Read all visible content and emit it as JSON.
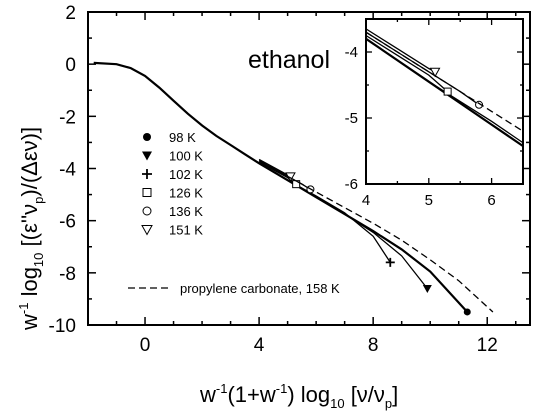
{
  "chart_data": {
    "type": "line",
    "title": "ethanol",
    "xlabel_parts": [
      "w",
      "-1",
      "(1+w",
      "-1",
      ") log",
      "10",
      " [ν/ν",
      "p",
      "]"
    ],
    "ylabel_parts": [
      "w",
      "-1",
      " log",
      "10",
      " [(ε''ν",
      "p",
      ")/(Δεν)]"
    ],
    "xlim": [
      -2,
      13.5
    ],
    "ylim": [
      -10,
      2
    ],
    "xticks": [
      0,
      4,
      8,
      12
    ],
    "yticks": [
      2,
      0,
      -2,
      -4,
      -6,
      -8,
      -10
    ],
    "legend_placement": "left-center",
    "series": [
      {
        "name": "98 K",
        "marker": "filled-circle",
        "x": [
          -1.8,
          -1.0,
          -0.5,
          0.0,
          0.5,
          1.0,
          1.5,
          2.0,
          2.5,
          3.0,
          3.5,
          4.0,
          5.0,
          6.0,
          7.0,
          8.0,
          9.0,
          10.0,
          11.3
        ],
        "y": [
          0.05,
          0.0,
          -0.15,
          -0.45,
          -0.9,
          -1.4,
          -1.9,
          -2.35,
          -2.75,
          -3.1,
          -3.45,
          -3.8,
          -4.45,
          -5.1,
          -5.75,
          -6.4,
          -7.1,
          -7.95,
          -9.5
        ]
      },
      {
        "name": "100 K",
        "marker": "filled-triangle-down",
        "x": [
          4.0,
          5.0,
          6.0,
          7.0,
          8.0,
          9.0,
          9.9
        ],
        "y": [
          -3.8,
          -4.45,
          -5.1,
          -5.75,
          -6.45,
          -7.35,
          -8.6
        ]
      },
      {
        "name": "102 K",
        "marker": "plus",
        "x": [
          4.0,
          5.0,
          6.0,
          7.0,
          8.0,
          8.6
        ],
        "y": [
          -3.8,
          -4.45,
          -5.05,
          -5.7,
          -6.6,
          -7.6
        ]
      },
      {
        "name": "126 K",
        "marker": "open-square",
        "x": [
          4.0,
          4.5,
          5.0,
          5.3
        ],
        "y": [
          -3.75,
          -4.05,
          -4.35,
          -4.6
        ]
      },
      {
        "name": "136 K",
        "marker": "open-circle",
        "x": [
          4.0,
          4.5,
          5.0,
          5.5,
          5.8
        ],
        "y": [
          -3.7,
          -4.0,
          -4.3,
          -4.6,
          -4.8
        ]
      },
      {
        "name": "151 K",
        "marker": "open-triangle-down",
        "x": [
          4.0,
          4.5,
          5.0,
          5.1
        ],
        "y": [
          -3.65,
          -3.95,
          -4.25,
          -4.3
        ]
      },
      {
        "name": "propylene carbonate, 158 K",
        "marker": "dashed-line",
        "x": [
          4.0,
          5.0,
          6.0,
          7.0,
          8.0,
          9.0,
          10.0,
          11.0,
          12.2
        ],
        "y": [
          -3.7,
          -4.3,
          -4.9,
          -5.5,
          -6.1,
          -6.75,
          -7.5,
          -8.3,
          -9.5
        ]
      }
    ],
    "inset": {
      "xlim": [
        4,
        6.5
      ],
      "ylim": [
        -6,
        -3.5
      ],
      "xticks": [
        4,
        5,
        6
      ],
      "yticks": [
        -4,
        -5,
        -6
      ]
    }
  }
}
